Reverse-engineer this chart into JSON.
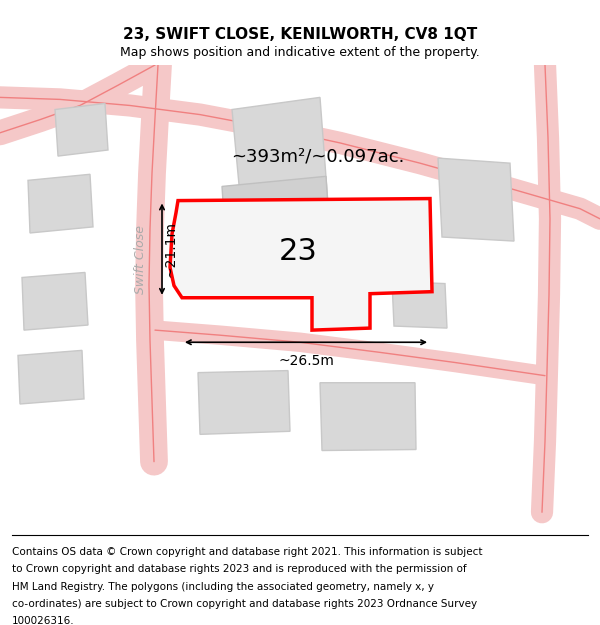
{
  "title": "23, SWIFT CLOSE, KENILWORTH, CV8 1QT",
  "subtitle": "Map shows position and indicative extent of the property.",
  "footer_lines": [
    "Contains OS data © Crown copyright and database right 2021. This information is subject",
    "to Crown copyright and database rights 2023 and is reproduced with the permission of",
    "HM Land Registry. The polygons (including the associated geometry, namely x, y",
    "co-ordinates) are subject to Crown copyright and database rights 2023 Ordnance Survey",
    "100026316."
  ],
  "area_text": "~393m²/~0.097ac.",
  "label_23": "23",
  "dim_width": "~26.5m",
  "dim_height": "~21.1m",
  "street_label": "Swift Close",
  "bg_color": "#ffffff",
  "map_bg": "#eeeeee",
  "road_color": "#f08080",
  "road_fill": "#f5c8c8",
  "building_fill": "#d8d8d8",
  "building_edge": "#c8c8c8",
  "plot_fill": "#f5f5f5",
  "plot_edge": "#ff0000",
  "plot_edge_width": 2.5,
  "title_fontsize": 11,
  "subtitle_fontsize": 9,
  "footer_fontsize": 7.5
}
